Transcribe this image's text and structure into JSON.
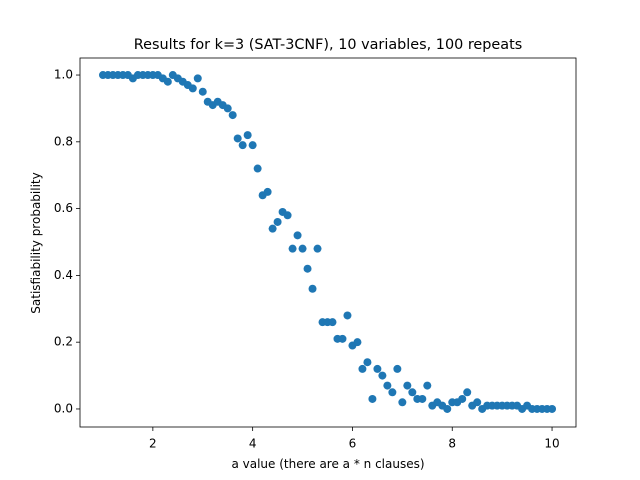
{
  "chart_data": {
    "type": "scatter",
    "title": "Results for k=3 (SAT-3CNF), 10 variables, 100 repeats",
    "x_label": "a value (there are a * n clauses)",
    "y_label": "Satisfiability probability",
    "color": "#1f77b4",
    "x": [
      1.0,
      1.1,
      1.2,
      1.3,
      1.4,
      1.5,
      1.6,
      1.7,
      1.8,
      1.9,
      2.0,
      2.1,
      2.2,
      2.3,
      2.4,
      2.5,
      2.6,
      2.7,
      2.8,
      2.9,
      3.0,
      3.1,
      3.2,
      3.3,
      3.4,
      3.5,
      3.6,
      3.7,
      3.8,
      3.9,
      4.0,
      4.1,
      4.2,
      4.3,
      4.4,
      4.5,
      4.6,
      4.7,
      4.8,
      4.9,
      5.0,
      5.1,
      5.2,
      5.3,
      5.4,
      5.5,
      5.6,
      5.7,
      5.8,
      5.9,
      6.0,
      6.1,
      6.2,
      6.3,
      6.4,
      6.5,
      6.6,
      6.7,
      6.8,
      6.9,
      7.0,
      7.1,
      7.2,
      7.3,
      7.4,
      7.5,
      7.6,
      7.7,
      7.8,
      7.9,
      8.0,
      8.1,
      8.2,
      8.3,
      8.4,
      8.5,
      8.6,
      8.7,
      8.8,
      8.9,
      9.0,
      9.1,
      9.2,
      9.3,
      9.4,
      9.5,
      9.6,
      9.7,
      9.8,
      9.9,
      10.0
    ],
    "values": [
      1,
      1,
      1,
      1,
      1,
      1,
      0.99,
      1,
      1,
      1,
      1,
      1,
      0.99,
      0.98,
      1,
      0.99,
      0.98,
      0.97,
      0.96,
      0.99,
      0.95,
      0.92,
      0.91,
      0.92,
      0.91,
      0.9,
      0.88,
      0.81,
      0.79,
      0.82,
      0.79,
      0.72,
      0.64,
      0.65,
      0.54,
      0.56,
      0.59,
      0.58,
      0.48,
      0.52,
      0.48,
      0.42,
      0.36,
      0.48,
      0.26,
      0.26,
      0.26,
      0.21,
      0.21,
      0.28,
      0.19,
      0.2,
      0.12,
      0.14,
      0.03,
      0.12,
      0.1,
      0.07,
      0.05,
      0.12,
      0.02,
      0.07,
      0.05,
      0.03,
      0.03,
      0.07,
      0.01,
      0.02,
      0.01,
      0,
      0.02,
      0.02,
      0.03,
      0.05,
      0.01,
      0.02,
      0,
      0.01,
      0.01,
      0.01,
      0.01,
      0.01,
      0.01,
      0.01,
      0,
      0.01,
      0,
      0,
      0,
      0,
      0
    ],
    "xlim": [
      0.54,
      10.48
    ],
    "ylim": [
      -0.054,
      1.051
    ],
    "xticks": [
      2,
      4,
      6,
      8,
      10
    ],
    "yticks": [
      {
        "value": 0,
        "label": "0.0"
      },
      {
        "value": 0.2,
        "label": "0.2"
      },
      {
        "value": 0.4,
        "label": "0.4"
      },
      {
        "value": 0.6,
        "label": "0.6"
      },
      {
        "value": 0.8,
        "label": "0.8"
      },
      {
        "value": 1,
        "label": "1.0"
      }
    ],
    "grid": false
  }
}
